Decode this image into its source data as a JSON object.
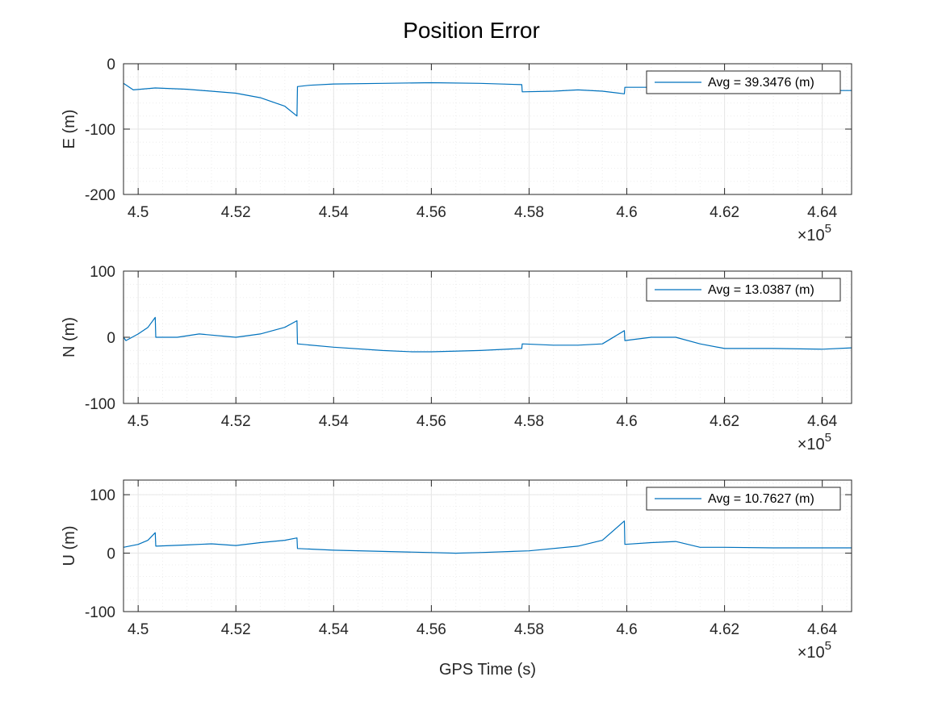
{
  "figure": {
    "title": "Position Error",
    "xlabel": "GPS Time (s)",
    "exponent_base": "×10",
    "exponent_power": "5"
  },
  "colors": {
    "series": "#0072bd",
    "axis": "#262626",
    "grid": "#e6e6e6",
    "minor_grid": "#ededed"
  },
  "chart_data": [
    {
      "type": "line",
      "name": "E",
      "ylabel": "E (m)",
      "legend": "Avg = 39.3476 (m)",
      "legend_position": "top-right",
      "grid": true,
      "xlim": [
        4.497,
        4.646
      ],
      "ylim": [
        -200,
        0
      ],
      "xticks": [
        4.5,
        4.52,
        4.54,
        4.56,
        4.58,
        4.6,
        4.62,
        4.64
      ],
      "xtick_labels": [
        "4.5",
        "4.52",
        "4.54",
        "4.56",
        "4.58",
        "4.6",
        "4.62",
        "4.64"
      ],
      "yticks": [
        -200,
        -100,
        0
      ],
      "ytick_labels": [
        "-200",
        "-100",
        "0"
      ],
      "x": [
        4.497,
        4.499,
        4.5035,
        4.51,
        4.52,
        4.525,
        4.53,
        4.5325,
        4.5326,
        4.535,
        4.54,
        4.55,
        4.56,
        4.57,
        4.5785,
        4.5786,
        4.585,
        4.59,
        4.595,
        4.5995,
        4.5996,
        4.605,
        4.61,
        4.615,
        4.62,
        4.63,
        4.64,
        4.646
      ],
      "y": [
        -30,
        -40,
        -37,
        -39,
        -45,
        -52,
        -65,
        -80,
        -35,
        -33,
        -31,
        -30,
        -29,
        -30,
        -32,
        -43,
        -42,
        -40,
        -42,
        -46,
        -36,
        -36,
        -38,
        -39,
        -38,
        -40,
        -41,
        -41
      ]
    },
    {
      "type": "line",
      "name": "N",
      "ylabel": "N (m)",
      "legend": "Avg = 13.0387 (m)",
      "legend_position": "top-right",
      "grid": true,
      "xlim": [
        4.497,
        4.646
      ],
      "ylim": [
        -100,
        100
      ],
      "xticks": [
        4.5,
        4.52,
        4.54,
        4.56,
        4.58,
        4.6,
        4.62,
        4.64
      ],
      "xtick_labels": [
        "4.5",
        "4.52",
        "4.54",
        "4.56",
        "4.58",
        "4.6",
        "4.62",
        "4.64"
      ],
      "yticks": [
        -100,
        0,
        100
      ],
      "ytick_labels": [
        "-100",
        "0",
        "100"
      ],
      "x": [
        4.497,
        4.4975,
        4.5,
        4.502,
        4.5035,
        4.5036,
        4.508,
        4.5125,
        4.52,
        4.525,
        4.53,
        4.5325,
        4.5326,
        4.54,
        4.55,
        4.556,
        4.56,
        4.57,
        4.5785,
        4.5786,
        4.585,
        4.59,
        4.595,
        4.5995,
        4.5996,
        4.605,
        4.61,
        4.615,
        4.62,
        4.63,
        4.64,
        4.646
      ],
      "y": [
        0,
        -5,
        5,
        15,
        30,
        0,
        0,
        5,
        0,
        5,
        15,
        25,
        -10,
        -15,
        -20,
        -22,
        -22,
        -20,
        -17,
        -10,
        -12,
        -12,
        -10,
        10,
        -5,
        0,
        0,
        -10,
        -17,
        -17,
        -18,
        -16
      ]
    },
    {
      "type": "line",
      "name": "U",
      "ylabel": "U (m)",
      "legend": "Avg = 10.7627 (m)",
      "legend_position": "top-right",
      "grid": true,
      "xlim": [
        4.497,
        4.646
      ],
      "ylim": [
        -100,
        125
      ],
      "xticks": [
        4.5,
        4.52,
        4.54,
        4.56,
        4.58,
        4.6,
        4.62,
        4.64
      ],
      "xtick_labels": [
        "4.5",
        "4.52",
        "4.54",
        "4.56",
        "4.58",
        "4.6",
        "4.62",
        "4.64"
      ],
      "yticks": [
        -100,
        0,
        100
      ],
      "ytick_labels": [
        "-100",
        "0",
        "100"
      ],
      "x": [
        4.497,
        4.5,
        4.502,
        4.5035,
        4.5036,
        4.51,
        4.515,
        4.52,
        4.525,
        4.53,
        4.5325,
        4.5326,
        4.54,
        4.55,
        4.56,
        4.565,
        4.57,
        4.58,
        4.59,
        4.595,
        4.5995,
        4.5996,
        4.605,
        4.61,
        4.615,
        4.62,
        4.63,
        4.64,
        4.646
      ],
      "y": [
        10,
        15,
        22,
        35,
        12,
        14,
        16,
        13,
        18,
        22,
        26,
        8,
        5,
        3,
        1,
        0,
        1,
        4,
        12,
        22,
        55,
        15,
        18,
        20,
        10,
        10,
        9,
        9,
        9
      ]
    }
  ]
}
